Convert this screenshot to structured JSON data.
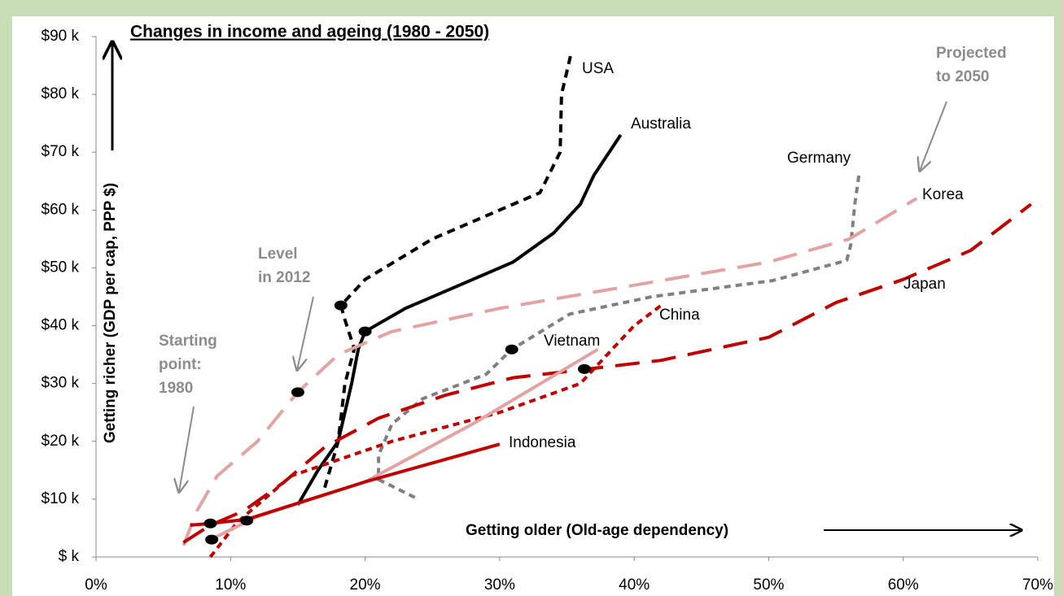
{
  "chart_data": {
    "type": "line",
    "title": "Changes in income and ageing (1980 - 2050)",
    "x_label": "Getting older (Old-age dependency)",
    "y_label": "Getting richer (GDP per cap, PPP $)",
    "xlim": [
      0,
      70
    ],
    "ylim": [
      0,
      90
    ],
    "xticks": [
      {
        "value": 0,
        "label": "0%"
      },
      {
        "value": 10,
        "label": "10%"
      },
      {
        "value": 20,
        "label": "20%"
      },
      {
        "value": 30,
        "label": "30%"
      },
      {
        "value": 40,
        "label": "40%"
      },
      {
        "value": 50,
        "label": "50%"
      },
      {
        "value": 60,
        "label": "60%"
      },
      {
        "value": 70,
        "label": "70%"
      }
    ],
    "yticks": [
      {
        "value": 0,
        "label": "$ k"
      },
      {
        "value": 10,
        "label": "$10 k"
      },
      {
        "value": 20,
        "label": "$20 k"
      },
      {
        "value": 30,
        "label": "$30 k"
      },
      {
        "value": 40,
        "label": "$40 k"
      },
      {
        "value": 50,
        "label": "$50 k"
      },
      {
        "value": 60,
        "label": "$60 k"
      },
      {
        "value": 70,
        "label": "$70 k"
      },
      {
        "value": 80,
        "label": "$80 k"
      },
      {
        "value": 90,
        "label": "$90 k"
      }
    ],
    "series": [
      {
        "name": "USA",
        "color": "#000000",
        "dash": "10,7",
        "x": [
          17,
          18,
          18.5,
          19.2,
          18.5,
          18.2,
          20,
          25,
          30,
          33,
          34.5,
          34.6,
          35.3
        ],
        "y": [
          12,
          20,
          30,
          36,
          41,
          43.5,
          48,
          55,
          60,
          63,
          70,
          80,
          87
        ]
      },
      {
        "name": "Australia",
        "color": "#000000",
        "dash": "none",
        "x": [
          15,
          16.5,
          18,
          19,
          19.5,
          20,
          23,
          27,
          31,
          34,
          36,
          37,
          39
        ],
        "y": [
          9,
          15,
          20,
          30,
          36,
          39,
          43,
          47,
          51,
          56,
          61,
          66,
          73
        ]
      },
      {
        "name": "Germany",
        "color": "#808080",
        "dash": "8,6",
        "x": [
          23.7,
          21,
          21,
          22,
          24.3,
          29,
          30.9,
          35.2,
          41.3,
          50.3,
          55.8,
          56.1,
          56.4,
          56.7
        ],
        "y": [
          10.3,
          13.4,
          17.6,
          23,
          27.4,
          31.6,
          35.9,
          42,
          45,
          47.8,
          51.3,
          54,
          61,
          66
        ]
      },
      {
        "name": "Korea",
        "color": "#e3a3a3",
        "dash": "30,15",
        "x": [
          6.5,
          7.5,
          9,
          12,
          15,
          18,
          22,
          30,
          40,
          50,
          56,
          61
        ],
        "y": [
          2,
          8,
          14,
          20,
          28.5,
          35,
          39,
          43,
          47,
          51,
          55,
          62
        ]
      },
      {
        "name": "Japan",
        "color": "#c00000",
        "dash": "30,15",
        "x": [
          6.5,
          8.5,
          11,
          14,
          17,
          21,
          26,
          31,
          36.5,
          42,
          50,
          55,
          60,
          65,
          69.5
        ],
        "y": [
          2.5,
          5.5,
          8,
          13,
          19,
          24,
          28,
          31,
          32.5,
          34,
          38,
          44,
          48,
          53,
          61
        ]
      },
      {
        "name": "China",
        "color": "#c00000",
        "dash": "8,6",
        "x": [
          8.5,
          10.5,
          12,
          14.5,
          17,
          22,
          30,
          36,
          38,
          40,
          42
        ],
        "y": [
          0,
          6,
          9,
          14,
          16,
          20,
          25,
          30,
          35,
          40,
          43.5
        ]
      },
      {
        "name": "Vietnam",
        "color": "#e3a3a3",
        "dash": "none",
        "x": [
          8.5,
          12,
          20,
          28,
          37.3
        ],
        "y": [
          3,
          7,
          13,
          23,
          35.9
        ]
      },
      {
        "name": "Indonesia",
        "color": "#c00000",
        "dash": "none",
        "x": [
          7,
          8.5,
          11.2,
          20,
          30
        ],
        "y": [
          5.5,
          5.8,
          6.5,
          13,
          19.5
        ]
      }
    ],
    "markers": {
      "x": [
        8.5,
        8.6,
        11.2,
        15,
        18.2,
        20,
        30.9,
        36.3
      ],
      "y": [
        5.8,
        3,
        6.3,
        28.5,
        43.5,
        39,
        35.9,
        32.5
      ]
    },
    "annotations": [
      {
        "lines": [
          "Starting",
          "point:",
          "1980"
        ]
      },
      {
        "lines": [
          "Level",
          "in 2012"
        ]
      },
      {
        "lines": [
          "Projected",
          "to 2050"
        ]
      }
    ]
  }
}
